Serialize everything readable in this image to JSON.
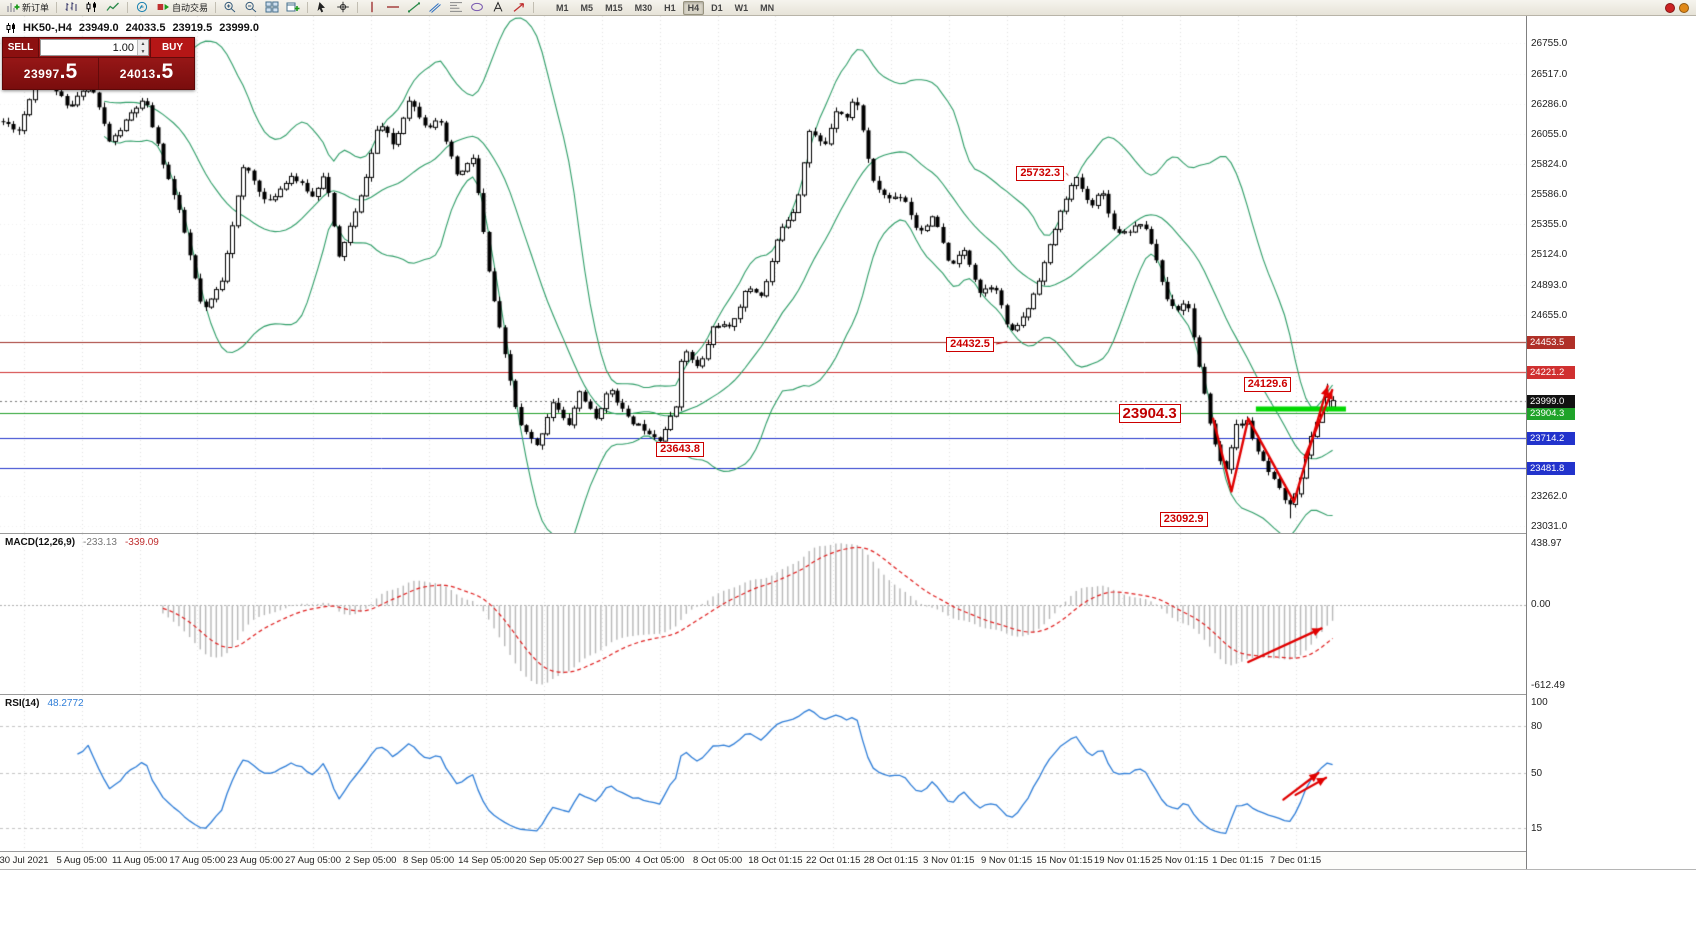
{
  "toolbar": {
    "items": [
      {
        "name": "new-order-button",
        "icon": "chart-plus",
        "label": "新订单"
      },
      {
        "sep": true
      },
      {
        "name": "bar-chart-button",
        "icon": "bar-chart"
      },
      {
        "name": "candle-chart-button",
        "icon": "candle-chart"
      },
      {
        "name": "line-chart-button",
        "icon": "line-chart"
      },
      {
        "sep": true
      },
      {
        "name": "indicators-button",
        "icon": "indicator"
      },
      {
        "name": "auto-trading-button",
        "icon": "play",
        "label": "自动交易"
      },
      {
        "sep": true
      },
      {
        "name": "zoom-in-button",
        "icon": "zoom-in"
      },
      {
        "name": "zoom-out-button",
        "icon": "zoom-out"
      },
      {
        "name": "tile-windows-button",
        "icon": "tile"
      },
      {
        "name": "new-chart-button",
        "icon": "window-plus"
      },
      {
        "sep": true
      },
      {
        "name": "cursor-button",
        "icon": "cursor"
      },
      {
        "name": "crosshair-button",
        "icon": "crosshair"
      },
      {
        "sep": true
      },
      {
        "name": "vertical-line-button",
        "icon": "vline"
      },
      {
        "name": "horizontal-line-button",
        "icon": "hline"
      },
      {
        "name": "trendline-button",
        "icon": "trend"
      },
      {
        "name": "channel-button",
        "icon": "channel"
      },
      {
        "name": "fibonacci-button",
        "icon": "fibo"
      },
      {
        "name": "shapes-button",
        "icon": "shapes"
      },
      {
        "name": "text-label-button",
        "icon": "text"
      },
      {
        "name": "arrow-object-button",
        "icon": "arrow-mark"
      },
      {
        "sep": true
      }
    ],
    "timeframes": [
      "M1",
      "M5",
      "M15",
      "M30",
      "H1",
      "H4",
      "D1",
      "W1",
      "MN"
    ],
    "active_timeframe": "H4",
    "status_icons": [
      {
        "name": "status-red-icon",
        "color": "#cc2222"
      },
      {
        "name": "status-orange-icon",
        "color": "#e08818"
      }
    ]
  },
  "chart_header": {
    "symbol_timeframe": "HK50-,H4",
    "open": "23949.0",
    "high": "24033.5",
    "low": "23919.5",
    "close": "23999.0"
  },
  "trade_panel": {
    "sell_label": "SELL",
    "buy_label": "BUY",
    "volume": "1.00",
    "sell_price_main": "23997",
    "sell_price_frac": ".5",
    "buy_price_main": "24013",
    "buy_price_frac": ".5"
  },
  "time_axis": [
    "30 Jul 2021",
    "5 Aug 05:00",
    "11 Aug 05:00",
    "17 Aug 05:00",
    "23 Aug 05:00",
    "27 Aug 05:00",
    "2 Sep 05:00",
    "8 Sep 05:00",
    "14 Sep 05:00",
    "20 Sep 05:00",
    "27 Sep 05:00",
    "4 Oct 05:00",
    "8 Oct 05:00",
    "18 Oct 01:15",
    "22 Oct 01:15",
    "28 Oct 01:15",
    "3 Nov 01:15",
    "9 Nov 01:15",
    "15 Nov 01:15",
    "19 Nov 01:15",
    "25 Nov 01:15",
    "1 Dec 01:15",
    "7 Dec 01:15"
  ],
  "chart_data": {
    "type": "candlestick",
    "symbol": "HK50",
    "timeframe": "H4",
    "ohlc_current": [
      23949.0,
      24033.5,
      23919.5,
      23999.0
    ],
    "price_range": [
      22980,
      26960
    ],
    "num_candles": 250,
    "candle_span": 0.875,
    "close_waypoints": [
      [
        0,
        26150
      ],
      [
        0.012,
        26050
      ],
      [
        0.025,
        26550
      ],
      [
        0.045,
        26250
      ],
      [
        0.058,
        26480
      ],
      [
        0.072,
        26000
      ],
      [
        0.085,
        26200
      ],
      [
        0.095,
        26300
      ],
      [
        0.105,
        25900
      ],
      [
        0.118,
        25400
      ],
      [
        0.133,
        24680
      ],
      [
        0.145,
        24900
      ],
      [
        0.16,
        25850
      ],
      [
        0.175,
        25500
      ],
      [
        0.19,
        25750
      ],
      [
        0.205,
        25550
      ],
      [
        0.213,
        25770
      ],
      [
        0.222,
        25080
      ],
      [
        0.235,
        25500
      ],
      [
        0.248,
        26150
      ],
      [
        0.258,
        25950
      ],
      [
        0.268,
        26350
      ],
      [
        0.28,
        26100
      ],
      [
        0.288,
        26150
      ],
      [
        0.3,
        25730
      ],
      [
        0.31,
        25850
      ],
      [
        0.32,
        25000
      ],
      [
        0.33,
        24380
      ],
      [
        0.34,
        23800
      ],
      [
        0.352,
        23660
      ],
      [
        0.362,
        23990
      ],
      [
        0.372,
        23800
      ],
      [
        0.38,
        24100
      ],
      [
        0.39,
        23850
      ],
      [
        0.4,
        24100
      ],
      [
        0.412,
        23850
      ],
      [
        0.42,
        23770
      ],
      [
        0.432,
        23700
      ],
      [
        0.443,
        23950
      ],
      [
        0.447,
        24380
      ],
      [
        0.458,
        24250
      ],
      [
        0.468,
        24600
      ],
      [
        0.478,
        24550
      ],
      [
        0.49,
        24900
      ],
      [
        0.5,
        24800
      ],
      [
        0.512,
        25340
      ],
      [
        0.522,
        25500
      ],
      [
        0.53,
        26050
      ],
      [
        0.54,
        25950
      ],
      [
        0.548,
        26250
      ],
      [
        0.556,
        26150
      ],
      [
        0.56,
        26370
      ],
      [
        0.572,
        25700
      ],
      [
        0.582,
        25550
      ],
      [
        0.592,
        25580
      ],
      [
        0.602,
        25310
      ],
      [
        0.612,
        25400
      ],
      [
        0.622,
        25040
      ],
      [
        0.632,
        25150
      ],
      [
        0.642,
        24810
      ],
      [
        0.652,
        24900
      ],
      [
        0.662,
        24500
      ],
      [
        0.672,
        24650
      ],
      [
        0.682,
        25000
      ],
      [
        0.692,
        25350
      ],
      [
        0.7,
        25620
      ],
      [
        0.706,
        25730
      ],
      [
        0.714,
        25500
      ],
      [
        0.722,
        25600
      ],
      [
        0.73,
        25300
      ],
      [
        0.74,
        25310
      ],
      [
        0.748,
        25350
      ],
      [
        0.756,
        25150
      ],
      [
        0.764,
        24800
      ],
      [
        0.772,
        24700
      ],
      [
        0.778,
        24760
      ],
      [
        0.785,
        24300
      ],
      [
        0.792,
        23900
      ],
      [
        0.798,
        23580
      ],
      [
        0.803,
        23460
      ],
      [
        0.81,
        23800
      ],
      [
        0.817,
        23860
      ],
      [
        0.823,
        23650
      ],
      [
        0.83,
        23450
      ],
      [
        0.838,
        23300
      ],
      [
        0.845,
        23180
      ],
      [
        0.852,
        23400
      ],
      [
        0.858,
        23650
      ],
      [
        0.865,
        23900
      ],
      [
        0.871,
        24060
      ],
      [
        0.875,
        23999
      ]
    ],
    "pins": [
      {
        "x": 0.432,
        "field": "low",
        "value": 23643.8
      },
      {
        "x": 0.845,
        "field": "low",
        "value": 23092.9
      },
      {
        "x": 0.869,
        "field": "high",
        "value": 24129.6
      }
    ],
    "bollinger": {
      "period": 20,
      "deviation": 2,
      "color": "#2f9e68"
    },
    "horizontal_lines": [
      {
        "price": 24453.5,
        "label": "24453.5",
        "line_color": "#a03028",
        "tag_bg": "#b03028"
      },
      {
        "price": 24221.2,
        "label": "24221.2",
        "line_color": "#d03030",
        "tag_bg": "#d03030"
      },
      {
        "price": 23904.3,
        "label": "23904.3",
        "line_color": "#22a02a",
        "tag_bg": "#1fa32a"
      },
      {
        "price": 23714.2,
        "label": "23714.2",
        "line_color": "#2233cc",
        "tag_bg": "#2233cc"
      },
      {
        "price": 23481.8,
        "label": "23481.8",
        "line_color": "#2233cc",
        "tag_bg": "#2233cc"
      }
    ],
    "current_price": {
      "value": 23999.0,
      "label": "23999.0",
      "tag_bg": "#111111",
      "line_color": "#777777"
    },
    "green_segment": {
      "x1": 0.823,
      "x2": 0.882,
      "price": 23935,
      "color": "#00d800",
      "width": 5
    },
    "annotations": [
      {
        "text": "25732.3",
        "x": 0.666,
        "price": 25750,
        "leader": {
          "x": 0.7,
          "price": 25732
        }
      },
      {
        "text": "24432.5",
        "x": 0.62,
        "price": 24435,
        "leader": {
          "x": 0.66,
          "price": 24453
        }
      },
      {
        "text": "24129.6",
        "x": 0.815,
        "price": 24125
      },
      {
        "text": "23904.3",
        "x": 0.733,
        "price": 23906,
        "big": true
      },
      {
        "text": "23643.8",
        "x": 0.43,
        "price": 23630
      },
      {
        "text": "23092.9",
        "x": 0.76,
        "price": 23090
      }
    ],
    "arrows": [
      {
        "points": [
          [
            0.795,
            23860
          ],
          [
            0.807,
            23300
          ],
          [
            0.818,
            23860
          ],
          [
            0.848,
            23220
          ],
          [
            0.87,
            24110
          ]
        ]
      },
      {
        "points": [
          [
            0.855,
            23560
          ],
          [
            0.873,
            24080
          ]
        ]
      }
    ],
    "price_axis": {
      "ticks": [
        26755.0,
        26517.0,
        26286.0,
        26055.0,
        25824.0,
        25586.0,
        25355.0,
        25124.0,
        24893.0,
        24655.0,
        23262.0,
        23031.0
      ]
    },
    "macd": {
      "label": "MACD(12,26,9)",
      "value": "-233.13",
      "signal_value": "-339.09",
      "params": [
        12,
        26,
        9
      ],
      "axis_top": "438.97",
      "axis_zero": "0.00",
      "axis_bottom": "-612.49",
      "histogram_color": "#b8b8b8",
      "signal_color": "#e02020",
      "arrow": {
        "points_frac": [
          [
            0.818,
            0.8
          ],
          [
            0.866,
            0.59
          ]
        ]
      }
    },
    "rsi": {
      "label": "RSI(14)",
      "value": "48.2772",
      "period": 14,
      "line_color": "#2f7ed8",
      "levels": [
        80,
        50,
        15
      ],
      "axis_labels": [
        100,
        80,
        50,
        15
      ],
      "arrows": [
        {
          "points": [
            [
              0.841,
              33
            ],
            [
              0.864,
              50
            ]
          ]
        },
        {
          "points": [
            [
              0.849,
              36
            ],
            [
              0.869,
              47
            ]
          ]
        }
      ]
    }
  }
}
